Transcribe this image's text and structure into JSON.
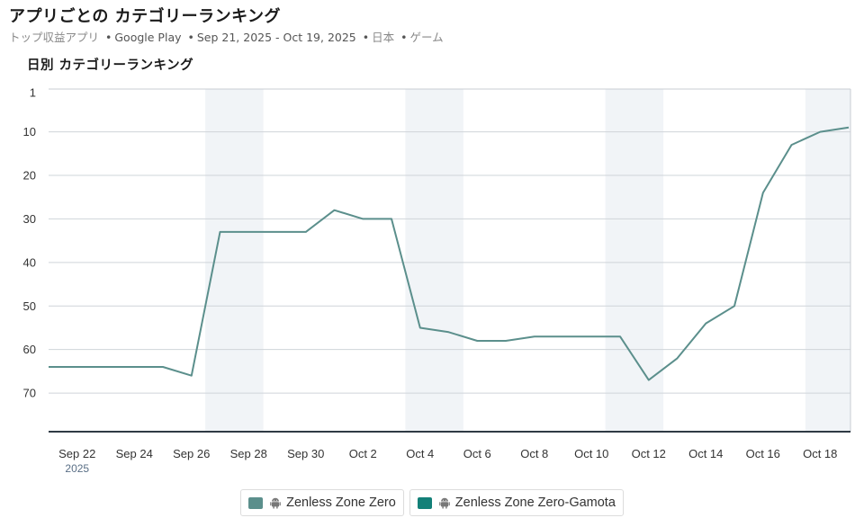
{
  "header": {
    "title": "アプリごとの カテゴリーランキング",
    "subtitle_parts": {
      "metric": "トップ収益アプリ",
      "store": "Google Play",
      "date_range": "Sep 21, 2025 - Oct 19, 2025",
      "country": "日本",
      "category": "ゲーム"
    },
    "separator": "•"
  },
  "chart_data": {
    "type": "line",
    "title": "日別 カテゴリーランキング",
    "y_axis": {
      "reversed": true,
      "min": 1,
      "max": 80,
      "ticks": [
        1,
        10,
        20,
        30,
        40,
        50,
        60,
        70
      ]
    },
    "x_tick_labels": [
      "Sep 22",
      "Sep 24",
      "Sep 26",
      "Sep 28",
      "Sep 30",
      "Oct 2",
      "Oct 4",
      "Oct 6",
      "Oct 8",
      "Oct 10",
      "Oct 12",
      "Oct 14",
      "Oct 16",
      "Oct 18"
    ],
    "x_year_label": "2025",
    "weekend_bands": [
      [
        "Sep 27",
        "Sep 28"
      ],
      [
        "Oct 4",
        "Oct 5"
      ],
      [
        "Oct 11",
        "Oct 12"
      ],
      [
        "Oct 18",
        "Oct 19"
      ]
    ],
    "grid": true,
    "series": [
      {
        "name": "Zenless Zone Zero",
        "color": "#5b8f8c",
        "points": [
          [
            "Sep 21",
            64
          ],
          [
            "Sep 22",
            64
          ],
          [
            "Sep 23",
            64
          ],
          [
            "Sep 24",
            64
          ],
          [
            "Sep 25",
            64
          ],
          [
            "Sep 26",
            66
          ],
          [
            "Sep 27",
            33
          ],
          [
            "Sep 28",
            33
          ],
          [
            "Sep 29",
            33
          ],
          [
            "Sep 30",
            33
          ],
          [
            "Oct 1",
            28
          ],
          [
            "Oct 2",
            30
          ],
          [
            "Oct 3",
            30
          ],
          [
            "Oct 4",
            55
          ],
          [
            "Oct 5",
            56
          ],
          [
            "Oct 6",
            58
          ],
          [
            "Oct 7",
            58
          ],
          [
            "Oct 8",
            57
          ],
          [
            "Oct 9",
            57
          ],
          [
            "Oct 10",
            57
          ],
          [
            "Oct 11",
            57
          ],
          [
            "Oct 12",
            67
          ],
          [
            "Oct 13",
            62
          ],
          [
            "Oct 14",
            54
          ],
          [
            "Oct 15",
            50
          ],
          [
            "Oct 16",
            24
          ],
          [
            "Oct 17",
            13
          ],
          [
            "Oct 18",
            10
          ],
          [
            "Oct 19",
            9
          ]
        ]
      },
      {
        "name": "Zenless Zone Zero-Gamota",
        "color": "#138078",
        "points": []
      }
    ],
    "legend_position": "bottom-center"
  },
  "legend": {
    "icon": "android-icon",
    "items": [
      "Zenless Zone Zero",
      "Zenless Zone Zero-Gamota"
    ]
  }
}
